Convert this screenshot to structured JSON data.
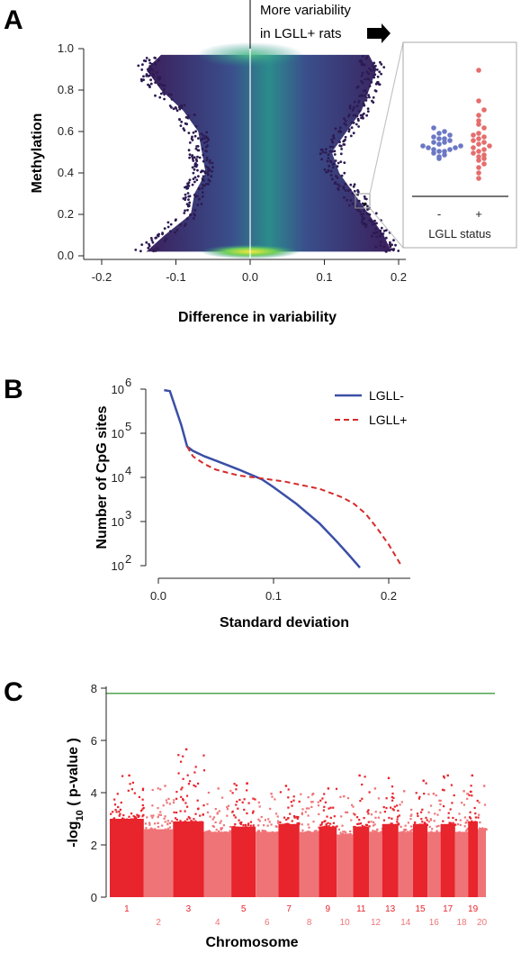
{
  "chart_data": [
    {
      "panel": "A",
      "type": "scatter",
      "xlabel": "Difference in variability",
      "ylabel": "Methylation",
      "xlim": [
        -0.2,
        0.2
      ],
      "ylim": [
        0.0,
        1.0
      ],
      "xticks": [
        "-0.2",
        "-0.1",
        "0.0",
        "0.1",
        "0.2"
      ],
      "yticks": [
        "0.0",
        "0.2",
        "0.4",
        "0.6",
        "0.8",
        "1.0"
      ],
      "annotation": [
        "More variability",
        "in LGLL+ rats"
      ],
      "highlight_point": {
        "x": 0.155,
        "y": 0.25
      },
      "envelope": {
        "y": [
          0.02,
          0.1,
          0.2,
          0.3,
          0.4,
          0.5,
          0.6,
          0.7,
          0.8,
          0.9,
          0.97
        ],
        "left": [
          -0.14,
          -0.115,
          -0.08,
          -0.075,
          -0.06,
          -0.065,
          -0.07,
          -0.09,
          -0.12,
          -0.14,
          -0.12
        ],
        "right": [
          0.19,
          0.18,
          0.16,
          0.14,
          0.12,
          0.11,
          0.13,
          0.15,
          0.16,
          0.17,
          0.16
        ]
      },
      "inset": {
        "xlabel": "LGLL status",
        "categories": [
          "-",
          "+"
        ],
        "groups": [
          {
            "name": "-",
            "color": "#6b78c4",
            "values": [
              0.41,
              0.42,
              0.43,
              0.44,
              0.45,
              0.45,
              0.46,
              0.46,
              0.47,
              0.47,
              0.48,
              0.48,
              0.49,
              0.5,
              0.5,
              0.51,
              0.52,
              0.52,
              0.53,
              0.54,
              0.55,
              0.56,
              0.58
            ]
          },
          {
            "name": "+",
            "color": "#e56d6d",
            "values": [
              0.3,
              0.33,
              0.36,
              0.38,
              0.4,
              0.41,
              0.42,
              0.43,
              0.44,
              0.45,
              0.46,
              0.47,
              0.48,
              0.49,
              0.5,
              0.51,
              0.52,
              0.53,
              0.54,
              0.55,
              0.58,
              0.6,
              0.62,
              0.65,
              0.68,
              0.73,
              0.9
            ]
          }
        ]
      }
    },
    {
      "panel": "B",
      "type": "line",
      "xlabel": "Standard deviation",
      "ylabel": "Number of CpG sites",
      "xlim": [
        0,
        0.22
      ],
      "ylim_log10": [
        2,
        6
      ],
      "xticks": [
        "0.0",
        "0.1",
        "0.2"
      ],
      "yticks": [
        "10",
        "10",
        "10",
        "10",
        "10"
      ],
      "ytick_exponents": [
        "2",
        "3",
        "4",
        "5",
        "6"
      ],
      "series": [
        {
          "name": "LGLL-",
          "color": "#3a4fa6",
          "dash": "solid",
          "x": [
            0.005,
            0.01,
            0.02,
            0.025,
            0.03,
            0.04,
            0.05,
            0.07,
            0.09,
            0.1,
            0.12,
            0.14,
            0.155,
            0.165,
            0.175
          ],
          "y": [
            950000,
            900000,
            150000,
            50000,
            40000,
            30000,
            24000,
            15000,
            9000,
            6000,
            2500,
            900,
            350,
            180,
            90
          ]
        },
        {
          "name": "LGLL+",
          "color": "#d62b2b",
          "dash": "dashed",
          "x": [
            0.025,
            0.03,
            0.04,
            0.05,
            0.07,
            0.09,
            0.11,
            0.14,
            0.16,
            0.17,
            0.18,
            0.19,
            0.2,
            0.21
          ],
          "y": [
            50000,
            30000,
            20000,
            15000,
            11000,
            9500,
            8000,
            5500,
            3500,
            2500,
            1500,
            700,
            300,
            110
          ]
        }
      ]
    },
    {
      "panel": "C",
      "type": "scatter",
      "xlabel": "Chromosome",
      "ylabel": "-log10 ( p-value )",
      "ylim": [
        0,
        8
      ],
      "yticks": [
        "0",
        "2",
        "4",
        "6",
        "8"
      ],
      "threshold": {
        "y": 7.8,
        "color": "#52a352"
      },
      "colors": [
        "#e8242c",
        "#ef7478"
      ],
      "chromosomes": [
        "1",
        "2",
        "3",
        "4",
        "5",
        "6",
        "7",
        "8",
        "9",
        "10",
        "11",
        "12",
        "13",
        "14",
        "15",
        "16",
        "17",
        "18",
        "19",
        "20"
      ],
      "chrom_peak": [
        4.7,
        4.3,
        5.7,
        4.2,
        4.4,
        4.0,
        4.3,
        4.0,
        4.2,
        3.9,
        4.7,
        4.2,
        4.6,
        4.1,
        4.5,
        4.0,
        4.7,
        4.1,
        4.7,
        4.3
      ],
      "chrom_base": [
        3.0,
        2.6,
        2.9,
        2.5,
        2.7,
        2.5,
        2.8,
        2.5,
        2.7,
        2.4,
        2.7,
        2.5,
        2.8,
        2.5,
        2.8,
        2.5,
        2.8,
        2.5,
        2.9,
        2.6
      ]
    }
  ]
}
